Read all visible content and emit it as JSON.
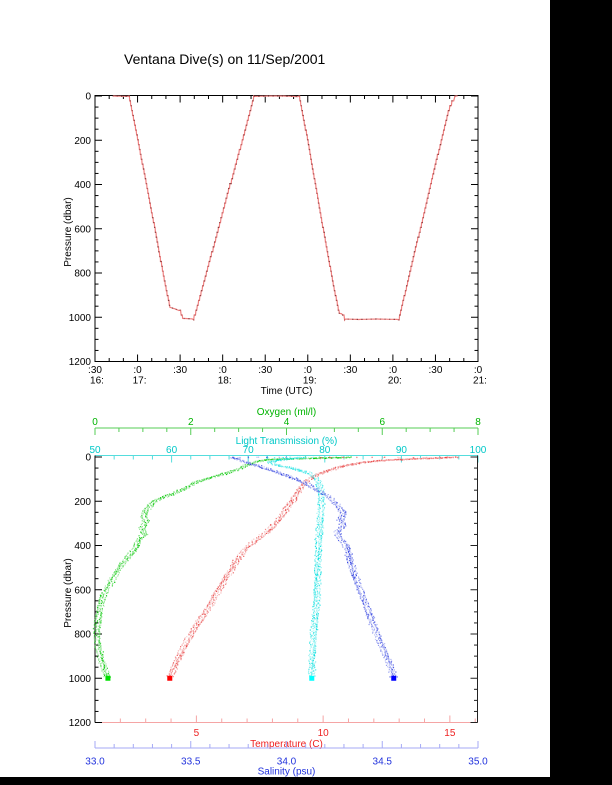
{
  "page": {
    "background": "#000000",
    "canvas_background": "#ffffff"
  },
  "title": "Ventana Dive(s) on 11/Sep/2001",
  "chart_data": [
    {
      "id": "dive-depth-vs-time",
      "type": "line",
      "title": "",
      "xlabel": "Time (UTC)",
      "ylabel": "Pressure (dbar)",
      "x_axis": {
        "start_hour": 16.5,
        "end_hour": 21.0,
        "major_tick_hours": [
          16.5,
          17.0,
          17.5,
          18.0,
          18.5,
          19.0,
          19.5,
          20.0,
          20.5,
          21.0
        ],
        "minor_tick_minutes": 10,
        "tick_minute_labels": [
          ":30",
          ":0",
          ":30",
          ":0",
          ":30",
          ":0",
          ":30",
          ":0",
          ":30",
          ":0"
        ],
        "tick_hour_labels": [
          "16:",
          "17:",
          "",
          "18:",
          "",
          "19:",
          "",
          "20:",
          "",
          "21:"
        ]
      },
      "y_axis": {
        "min": 0,
        "max": 1200,
        "direction": "down",
        "major_ticks": [
          0,
          200,
          400,
          600,
          800,
          1000,
          1200
        ],
        "tick_labels": [
          "0",
          "200",
          "400",
          "600",
          "800",
          "1000",
          "1200"
        ],
        "minor_step": 50
      },
      "grid": false,
      "series": [
        {
          "name": "dive-track",
          "color": "#f08080",
          "dot_color": "#5a2424",
          "points_time_pressure": [
            [
              16.71,
              0
            ],
            [
              16.9,
              2
            ],
            [
              17.0,
              190
            ],
            [
              17.1,
              390
            ],
            [
              17.2,
              590
            ],
            [
              17.3,
              800
            ],
            [
              17.38,
              955
            ],
            [
              17.44,
              962
            ],
            [
              17.5,
              972
            ],
            [
              17.53,
              1005
            ],
            [
              17.66,
              1008
            ],
            [
              17.8,
              815
            ],
            [
              17.95,
              600
            ],
            [
              18.1,
              385
            ],
            [
              18.25,
              175
            ],
            [
              18.37,
              2
            ],
            [
              18.52,
              0
            ],
            [
              18.72,
              0
            ],
            [
              18.9,
              3
            ],
            [
              19.0,
              200
            ],
            [
              19.1,
              420
            ],
            [
              19.2,
              640
            ],
            [
              19.3,
              850
            ],
            [
              19.37,
              982
            ],
            [
              19.41,
              985
            ],
            [
              19.44,
              1008
            ],
            [
              19.6,
              1010
            ],
            [
              19.8,
              1008
            ],
            [
              20.07,
              1010
            ],
            [
              20.2,
              800
            ],
            [
              20.35,
              555
            ],
            [
              20.5,
              310
            ],
            [
              20.65,
              75
            ],
            [
              20.7,
              20
            ],
            [
              20.76,
              0
            ]
          ]
        }
      ]
    },
    {
      "id": "ctd-profiles",
      "type": "scatter",
      "ylabel": "Pressure (dbar)",
      "y_axis": {
        "min": 0,
        "max": 1200,
        "direction": "down",
        "major_ticks": [
          0,
          200,
          400,
          600,
          800,
          1000,
          1200
        ],
        "tick_labels": [
          "0",
          "200",
          "400",
          "600",
          "800",
          "1000",
          "1200"
        ],
        "minor_step": 50
      },
      "x_axes": [
        {
          "name": "oxygen",
          "label": "Oxygen (ml/l)",
          "side": "top-outer",
          "min": 0,
          "max": 8,
          "tick_values": [
            0,
            2,
            4,
            6,
            8
          ],
          "tick_labels": [
            "0",
            "2",
            "4",
            "6",
            "8"
          ],
          "minor_step": 0.5,
          "text_color": "#00b400",
          "line_color": "#55cc55"
        },
        {
          "name": "light-transmission",
          "label": "Light Transmission (%)",
          "side": "top-border",
          "min": 50,
          "max": 100,
          "tick_values": [
            50,
            60,
            70,
            80,
            90,
            100
          ],
          "tick_labels": [
            "50",
            "60",
            "70",
            "80",
            "90",
            "100"
          ],
          "minor_step": 2.5,
          "text_color": "#00c8c8",
          "line_color": "#55dddd"
        },
        {
          "name": "temperature",
          "label": "Temperature (C)",
          "side": "bottom-border",
          "min": 1.0,
          "max": 16.11,
          "tick_values": [
            5,
            10,
            15
          ],
          "tick_labels": [
            "5",
            "10",
            "15"
          ],
          "minor_step": 1,
          "text_color": "#ee2222",
          "line_color": "#f5a5a5"
        },
        {
          "name": "salinity",
          "label": "Salinity (psu)",
          "side": "bottom-outer",
          "min": 33.0,
          "max": 35.0,
          "tick_values": [
            33.0,
            33.5,
            34.0,
            34.5,
            35.0
          ],
          "tick_labels": [
            "33.0",
            "33.5",
            "34.0",
            "34.5",
            "35.0"
          ],
          "minor_step": 0.1,
          "text_color": "#2233dd",
          "line_color": "#a5aaf5"
        }
      ],
      "series": [
        {
          "name": "oxygen-profile",
          "axis": "oxygen",
          "color": "#00c800",
          "light_color": "#77dd77",
          "endpoint_color": "#00e000",
          "points_value_pressure": [
            [
              5.3,
              2
            ],
            [
              4.8,
              5
            ],
            [
              4.2,
              8
            ],
            [
              3.6,
              12
            ],
            [
              3.4,
              20
            ],
            [
              3.2,
              35
            ],
            [
              3.0,
              55
            ],
            [
              2.7,
              75
            ],
            [
              2.4,
              95
            ],
            [
              2.1,
              115
            ],
            [
              1.9,
              140
            ],
            [
              1.7,
              160
            ],
            [
              1.4,
              185
            ],
            [
              1.2,
              205
            ],
            [
              1.08,
              240
            ],
            [
              1.02,
              270
            ],
            [
              1.08,
              295
            ],
            [
              1.0,
              320
            ],
            [
              1.05,
              350
            ],
            [
              0.92,
              375
            ],
            [
              0.88,
              405
            ],
            [
              0.75,
              440
            ],
            [
              0.62,
              470
            ],
            [
              0.5,
              505
            ],
            [
              0.38,
              545
            ],
            [
              0.27,
              585
            ],
            [
              0.17,
              625
            ],
            [
              0.11,
              670
            ],
            [
              0.08,
              715
            ],
            [
              0.06,
              765
            ],
            [
              0.06,
              815
            ],
            [
              0.09,
              860
            ],
            [
              0.13,
              905
            ],
            [
              0.19,
              950
            ],
            [
              0.24,
              980
            ],
            [
              0.27,
              1000
            ]
          ],
          "surface_values": [
            5.3,
            5.0,
            4.7,
            4.4
          ]
        },
        {
          "name": "light-transmission-profile",
          "axis": "light-transmission",
          "color": "#00dede",
          "light_color": "#88f0f0",
          "endpoint_color": "#00ffff",
          "points_value_pressure": [
            [
              77.2,
              2
            ],
            [
              75.5,
              8
            ],
            [
              73.8,
              15
            ],
            [
              72.9,
              23
            ],
            [
              73.3,
              32
            ],
            [
              74.4,
              42
            ],
            [
              75.8,
              52
            ],
            [
              77.0,
              63
            ],
            [
              78.0,
              76
            ],
            [
              78.7,
              92
            ],
            [
              79.1,
              112
            ],
            [
              79.35,
              140
            ],
            [
              79.5,
              175
            ],
            [
              79.55,
              215
            ],
            [
              79.5,
              260
            ],
            [
              79.45,
              310
            ],
            [
              79.35,
              360
            ],
            [
              79.25,
              415
            ],
            [
              79.15,
              470
            ],
            [
              79.05,
              525
            ],
            [
              78.95,
              580
            ],
            [
              78.9,
              635
            ],
            [
              78.85,
              690
            ],
            [
              78.75,
              745
            ],
            [
              78.65,
              800
            ],
            [
              78.55,
              855
            ],
            [
              78.45,
              905
            ],
            [
              78.35,
              950
            ],
            [
              78.3,
              1000
            ]
          ],
          "surface_values": [
            72.5,
            73.5,
            74.5,
            75.5,
            76.5,
            77.5,
            78.5
          ]
        },
        {
          "name": "temperature-profile",
          "axis": "temperature",
          "color": "#e84040",
          "light_color": "#f2a0a0",
          "endpoint_color": "#ff0000",
          "points_value_pressure": [
            [
              15.2,
              1
            ],
            [
              14.8,
              3
            ],
            [
              14.2,
              6
            ],
            [
              13.5,
              9
            ],
            [
              12.8,
              13
            ],
            [
              12.1,
              18
            ],
            [
              11.5,
              26
            ],
            [
              11.0,
              36
            ],
            [
              10.6,
              48
            ],
            [
              10.2,
              62
            ],
            [
              9.8,
              78
            ],
            [
              9.5,
              95
            ],
            [
              9.3,
              115
            ],
            [
              9.1,
              140
            ],
            [
              8.95,
              165
            ],
            [
              8.8,
              195
            ],
            [
              8.6,
              225
            ],
            [
              8.45,
              255
            ],
            [
              8.25,
              285
            ],
            [
              8.05,
              310
            ],
            [
              7.8,
              340
            ],
            [
              7.5,
              365
            ],
            [
              7.25,
              390
            ],
            [
              7.0,
              410
            ],
            [
              6.85,
              430
            ],
            [
              6.7,
              455
            ],
            [
              6.55,
              475
            ],
            [
              6.4,
              505
            ],
            [
              6.2,
              540
            ],
            [
              6.0,
              575
            ],
            [
              5.8,
              615
            ],
            [
              5.6,
              655
            ],
            [
              5.4,
              695
            ],
            [
              5.2,
              730
            ],
            [
              5.0,
              765
            ],
            [
              4.8,
              805
            ],
            [
              4.6,
              845
            ],
            [
              4.4,
              890
            ],
            [
              4.2,
              935
            ],
            [
              4.05,
              970
            ],
            [
              3.95,
              1000
            ]
          ],
          "surface_values": [
            9.9,
            10.3,
            10.8,
            11.3,
            11.9,
            12.4,
            13.0,
            13.6,
            14.1,
            14.6,
            15.0,
            15.3
          ]
        },
        {
          "name": "salinity-profile",
          "axis": "salinity",
          "color": "#3040e0",
          "light_color": "#97a0ee",
          "endpoint_color": "#0000ff",
          "points_value_pressure": [
            [
              33.72,
              2
            ],
            [
              33.74,
              8
            ],
            [
              33.77,
              18
            ],
            [
              33.81,
              30
            ],
            [
              33.86,
              44
            ],
            [
              33.92,
              60
            ],
            [
              33.98,
              78
            ],
            [
              34.04,
              98
            ],
            [
              34.1,
              120
            ],
            [
              34.15,
              145
            ],
            [
              34.2,
              170
            ],
            [
              34.24,
              195
            ],
            [
              34.275,
              225
            ],
            [
              34.3,
              255
            ],
            [
              34.285,
              285
            ],
            [
              34.3,
              310
            ],
            [
              34.27,
              340
            ],
            [
              34.28,
              365
            ],
            [
              34.31,
              395
            ],
            [
              34.325,
              425
            ],
            [
              34.33,
              455
            ],
            [
              34.34,
              490
            ],
            [
              34.35,
              525
            ],
            [
              34.365,
              560
            ],
            [
              34.38,
              600
            ],
            [
              34.4,
              640
            ],
            [
              34.42,
              680
            ],
            [
              34.435,
              715
            ],
            [
              34.45,
              750
            ],
            [
              34.47,
              790
            ],
            [
              34.49,
              830
            ],
            [
              34.51,
              870
            ],
            [
              34.53,
              915
            ],
            [
              34.55,
              960
            ],
            [
              34.56,
              1000
            ]
          ],
          "surface_values": [
            33.72,
            33.76,
            33.8,
            33.85,
            33.9,
            33.96,
            34.0
          ]
        }
      ]
    }
  ]
}
